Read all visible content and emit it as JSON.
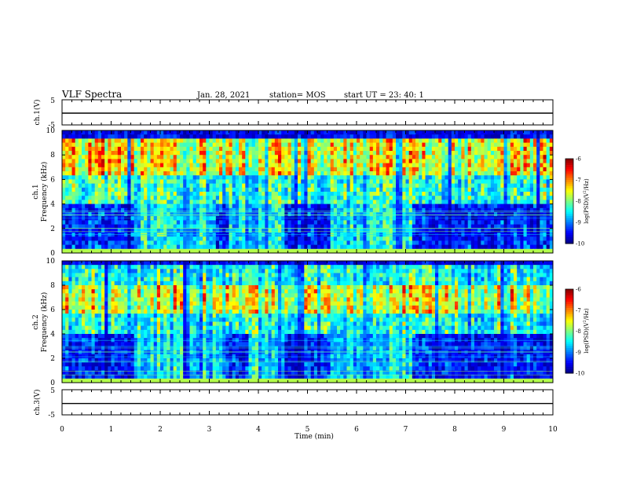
{
  "header": {
    "title": "VLF Spectra",
    "date": "Jan. 28, 2021",
    "station": "station= MOS",
    "start": "start  UT  =   23: 40: 1"
  },
  "chart_data": [
    {
      "type": "line",
      "name": "ch1-waveform",
      "ylabel": "ch.1(V)",
      "ylim": [
        -5,
        5
      ],
      "yticks": [
        "5",
        "-5"
      ],
      "xlim": [
        0,
        10
      ],
      "level": -0.3
    },
    {
      "type": "heatmap",
      "name": "ch1-spectrogram",
      "ylabel_line1": "ch.1",
      "ylabel_line2": "Frequency  (kHz)",
      "xlim": [
        0,
        10
      ],
      "ylim": [
        0,
        10
      ],
      "yticks": [
        "0",
        "2",
        "4",
        "6",
        "8",
        "10"
      ],
      "colorbar": {
        "label": "log(PSD)(V²/Hz)",
        "ticks": [
          "-6",
          "-7",
          "-8",
          "-9",
          "-10"
        ],
        "range": [
          -10,
          -6
        ]
      },
      "features": {
        "broadband_top_khz": 9.4,
        "quiet_intervals_min": [
          [
            1.45,
            3.1
          ],
          [
            3.4,
            4.55
          ],
          [
            5.5,
            7.1
          ]
        ],
        "strong_band_khz": [
          6.5,
          9.2
        ]
      }
    },
    {
      "type": "heatmap",
      "name": "ch2-spectrogram",
      "ylabel_line1": "ch.2",
      "ylabel_line2": "Frequency  (kHz)",
      "xlim": [
        0,
        10
      ],
      "ylim": [
        0,
        10
      ],
      "yticks": [
        "0",
        "2",
        "4",
        "6",
        "8",
        "10"
      ],
      "colorbar": {
        "label": "log(PSD)(V²/Hz)",
        "ticks": [
          "-6",
          "-7",
          "-8",
          "-9",
          "-10"
        ],
        "range": [
          -10,
          -6
        ]
      },
      "features": {
        "broadband_top_khz": 9.5,
        "quiet_intervals_min": [
          [
            1.5,
            3.3
          ],
          [
            3.8,
            4.55
          ],
          [
            5.5,
            7.1
          ]
        ],
        "strong_band_khz": [
          5.6,
          8.0
        ]
      }
    },
    {
      "type": "line",
      "name": "ch3-waveform",
      "ylabel": "ch.3(V)",
      "ylim": [
        -5,
        5
      ],
      "yticks": [
        "5",
        "-5"
      ],
      "xlim": [
        0,
        10
      ],
      "level": -0.5
    }
  ],
  "xaxis": {
    "label": "Time  (min)",
    "ticks": [
      "0",
      "1",
      "2",
      "3",
      "4",
      "5",
      "6",
      "7",
      "8",
      "9",
      "10"
    ]
  }
}
